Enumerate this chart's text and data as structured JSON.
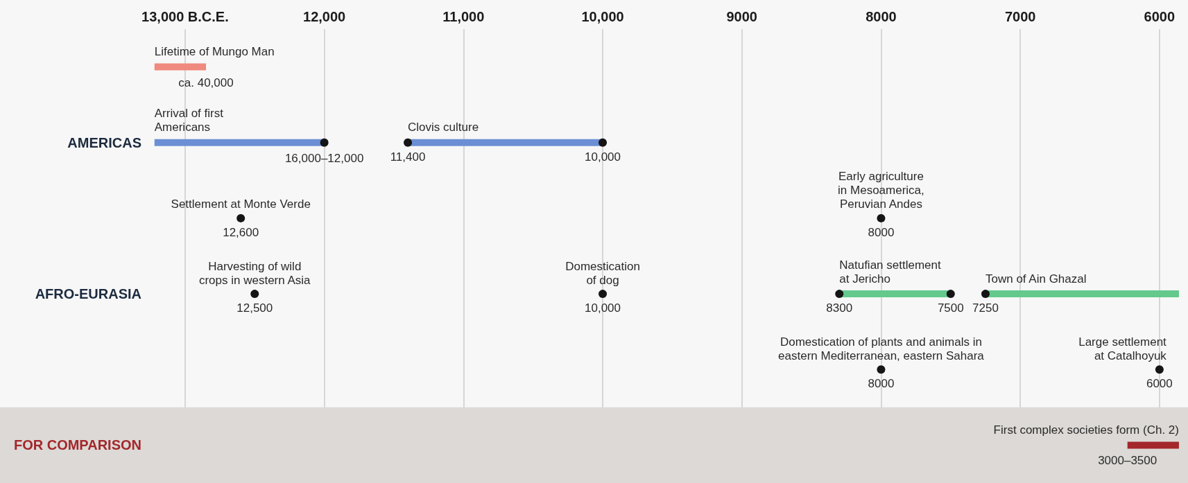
{
  "chart_data": {
    "type": "scatter",
    "orientation": "horizontal",
    "grid": "x",
    "categories": [
      null,
      "AMERICAS",
      null,
      "AFRO-EURASIA",
      null,
      "FOR COMPARISON"
    ],
    "xlim": [
      14300,
      5800
    ],
    "xticks": [
      {
        "value": 13000,
        "label": "13,000 B.C.E."
      },
      {
        "value": 12000,
        "label": "12,000"
      },
      {
        "value": 11000,
        "label": "11,000"
      },
      {
        "value": 10000,
        "label": "10,000"
      },
      9000,
      8000,
      7000,
      6000
    ],
    "bands": [
      {
        "axis": "y",
        "from": "FOR COMPARISON",
        "to": "FOR COMPARISON",
        "color": "#dcd9d6"
      }
    ],
    "annotations": [
      "ca. 40,000",
      {
        "text": "16,000–12,000",
        "x": 12000,
        "y": "AMERICAS"
      },
      {
        "text": "3000–3500",
        "x": 6230,
        "y": "FOR COMPARISON"
      }
    ],
    "series": [
      {
        "type": "bar",
        "name": "Lifetime of Mungo Man",
        "color": "#f08a7e",
        "base": [
          12850,
          null,
          null,
          null,
          null,
          null
        ],
        "values": [
          370,
          null,
          null,
          null,
          null,
          null
        ]
      },
      {
        "type": "bar",
        "name": "Arrival of first\nAmericans",
        "color": "#6b8fd4",
        "base": [
          null,
          12000,
          null,
          null,
          null,
          null
        ],
        "values": [
          null,
          1220,
          null,
          null,
          null,
          null
        ]
      },
      {
        "type": "bar",
        "name": "Clovis culture",
        "color": "#6b8fd4",
        "base": [
          null,
          11400,
          null,
          null,
          null,
          null
        ],
        "values": [
          null,
          -1400,
          null,
          null,
          null,
          null
        ]
      },
      {
        "type": "bar",
        "name": "Natufian settlement\nat Jericho",
        "color": "#63c98d",
        "base": [
          null,
          null,
          null,
          8300,
          null,
          null
        ],
        "values": [
          null,
          null,
          null,
          -800,
          null,
          null
        ]
      },
      {
        "type": "bar",
        "name": "Town of Ain Ghazal",
        "color": "#63c98d",
        "base": [
          null,
          null,
          null,
          7250,
          null,
          null
        ],
        "values": [
          null,
          null,
          null,
          -1390,
          null,
          null
        ]
      },
      {
        "type": "bar",
        "name": "First complex societies form (Ch. 2)",
        "color": "#a3272b",
        "base": [
          null,
          null,
          null,
          null,
          null,
          6230
        ],
        "values": [
          null,
          null,
          null,
          null,
          null,
          -370
        ]
      },
      {
        "color": "#151515",
        "values": [
          null,
          12000,
          null,
          8300,
          null,
          null
        ],
        "value_labels": [
          null,
          null,
          null,
          "8300",
          null,
          null
        ]
      },
      {
        "color": "#151515",
        "values": [
          null,
          11400,
          null,
          7500,
          null,
          null
        ],
        "value_labels": [
          null,
          "11,400",
          null,
          "7500",
          null,
          null
        ]
      },
      {
        "color": "#151515",
        "values": [
          null,
          10000,
          null,
          7250,
          null,
          null
        ],
        "value_labels": [
          null,
          "10,000",
          null,
          "7250",
          null,
          null
        ]
      },
      {
        "name": "Settlement at Monte Verde",
        "color": "#151515",
        "values": [
          null,
          null,
          12600,
          null,
          null,
          null
        ],
        "value_labels": [
          null,
          null,
          "12,600",
          null,
          null,
          null
        ]
      },
      {
        "name": "Early agriculture\nin Mesoamerica,\nPeruvian Andes",
        "color": "#151515",
        "values": [
          null,
          null,
          8000,
          null,
          null,
          null
        ],
        "value_labels": [
          null,
          null,
          "8000",
          null,
          null,
          null
        ]
      },
      {
        "name": "Harvesting of wild\ncrops in western Asia",
        "color": "#151515",
        "values": [
          null,
          null,
          null,
          12500,
          null,
          null
        ],
        "value_labels": [
          null,
          null,
          null,
          "12,500",
          null,
          null
        ]
      },
      {
        "name": "Domestication\nof dog",
        "color": "#151515",
        "values": [
          null,
          null,
          null,
          10000,
          null,
          null
        ],
        "value_labels": [
          null,
          null,
          null,
          "10,000",
          null,
          null
        ]
      },
      {
        "name": "Domestication of plants and animals in\neastern Mediterranean, eastern Sahara",
        "color": "#151515",
        "values": [
          null,
          null,
          null,
          null,
          8000,
          null
        ],
        "value_labels": [
          null,
          null,
          null,
          null,
          "8000",
          null
        ]
      },
      {
        "name": "Large settlement\nat Catalhoyuk",
        "color": "#151515",
        "values": [
          null,
          null,
          null,
          null,
          6000,
          null
        ],
        "value_labels": [
          null,
          null,
          null,
          null,
          "6000",
          null
        ]
      }
    ]
  }
}
